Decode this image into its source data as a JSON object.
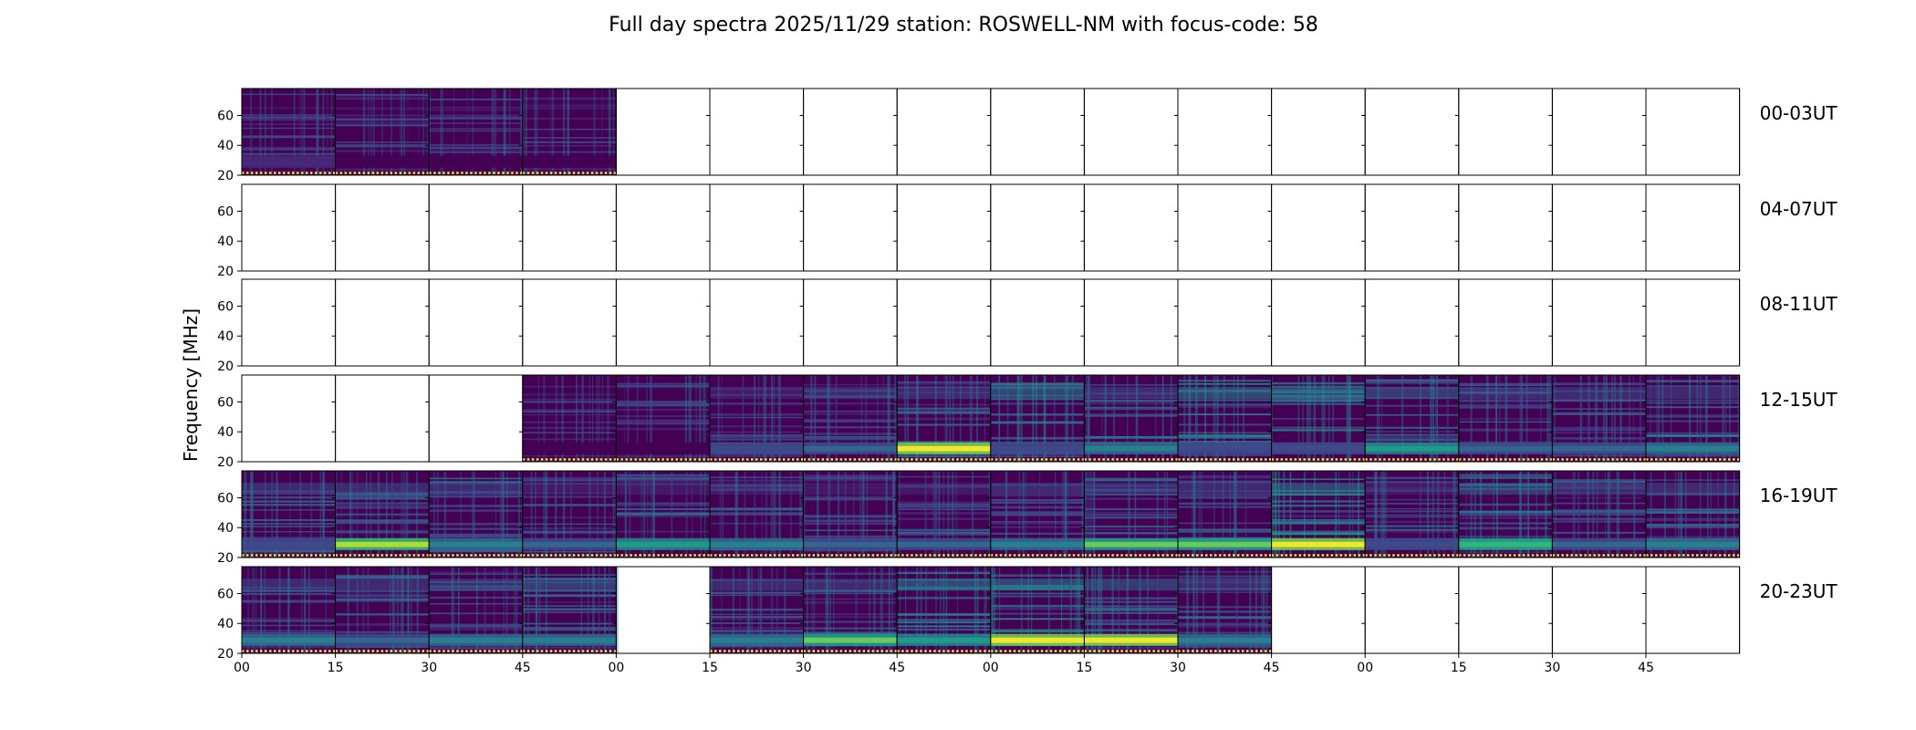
{
  "chart_data": {
    "type": "heatmap",
    "title": "Full day spectra 2025/11/29 station: ROSWELL-NM with focus-code: 58",
    "ylabel": "Frequency [MHz]",
    "xlabel": "",
    "ylim": [
      20,
      78
    ],
    "y_ticks": [
      "20",
      "40",
      "60"
    ],
    "x_ticks": [
      "00",
      "15",
      "30",
      "45",
      "00",
      "15",
      "30",
      "45",
      "00",
      "15",
      "30",
      "45",
      "00",
      "15",
      "30",
      "45"
    ],
    "colormap": [
      "#440154",
      "#482878",
      "#3e4a89",
      "#31688e",
      "#26828e",
      "#1f9e89",
      "#35b779",
      "#6ece58",
      "#b5de2b",
      "#fde725"
    ],
    "rows": [
      {
        "label": "00-03UT",
        "panels": [
          {
            "has_data": true,
            "low_band": 0.15,
            "mid_band": 0.1
          },
          {
            "has_data": true,
            "low_band": 0.1,
            "mid_band": 0.05
          },
          {
            "has_data": true,
            "low_band": 0.1,
            "mid_band": 0.05
          },
          {
            "has_data": true,
            "low_band": 0.1,
            "mid_band": 0.05
          },
          {
            "has_data": false
          },
          {
            "has_data": false
          },
          {
            "has_data": false
          },
          {
            "has_data": false
          },
          {
            "has_data": false
          },
          {
            "has_data": false
          },
          {
            "has_data": false
          },
          {
            "has_data": false
          },
          {
            "has_data": false
          },
          {
            "has_data": false
          },
          {
            "has_data": false
          },
          {
            "has_data": false
          }
        ]
      },
      {
        "label": "04-07UT",
        "panels": [
          {
            "has_data": false
          },
          {
            "has_data": false
          },
          {
            "has_data": false
          },
          {
            "has_data": false
          },
          {
            "has_data": false
          },
          {
            "has_data": false
          },
          {
            "has_data": false
          },
          {
            "has_data": false
          },
          {
            "has_data": false
          },
          {
            "has_data": false
          },
          {
            "has_data": false
          },
          {
            "has_data": false
          },
          {
            "has_data": false
          },
          {
            "has_data": false
          },
          {
            "has_data": false
          },
          {
            "has_data": false
          }
        ]
      },
      {
        "label": "08-11UT",
        "panels": [
          {
            "has_data": false
          },
          {
            "has_data": false
          },
          {
            "has_data": false
          },
          {
            "has_data": false
          },
          {
            "has_data": false
          },
          {
            "has_data": false
          },
          {
            "has_data": false
          },
          {
            "has_data": false
          },
          {
            "has_data": false
          },
          {
            "has_data": false
          },
          {
            "has_data": false
          },
          {
            "has_data": false
          },
          {
            "has_data": false
          },
          {
            "has_data": false
          },
          {
            "has_data": false
          },
          {
            "has_data": false
          }
        ]
      },
      {
        "label": "12-15UT",
        "panels": [
          {
            "has_data": false
          },
          {
            "has_data": false
          },
          {
            "has_data": false
          },
          {
            "has_data": true,
            "low_band": 0.05,
            "mid_band": 0.05
          },
          {
            "has_data": true,
            "low_band": 0.1,
            "mid_band": 0.05
          },
          {
            "has_data": true,
            "low_band": 0.3,
            "mid_band": 0.2
          },
          {
            "has_data": true,
            "low_band": 0.35,
            "mid_band": 0.25
          },
          {
            "has_data": true,
            "low_band": 0.95,
            "mid_band": 0.3
          },
          {
            "has_data": true,
            "low_band": 0.3,
            "mid_band": 0.55
          },
          {
            "has_data": true,
            "low_band": 0.5,
            "mid_band": 0.3
          },
          {
            "has_data": true,
            "low_band": 0.3,
            "mid_band": 0.5
          },
          {
            "has_data": true,
            "low_band": 0.3,
            "mid_band": 0.45
          },
          {
            "has_data": true,
            "low_band": 0.6,
            "mid_band": 0.35
          },
          {
            "has_data": true,
            "low_band": 0.4,
            "mid_band": 0.3
          },
          {
            "has_data": true,
            "low_band": 0.35,
            "mid_band": 0.3
          },
          {
            "has_data": true,
            "low_band": 0.5,
            "mid_band": 0.3
          }
        ]
      },
      {
        "label": "16-19UT",
        "panels": [
          {
            "has_data": true,
            "low_band": 0.3,
            "mid_band": 0.3
          },
          {
            "has_data": true,
            "low_band": 0.85,
            "mid_band": 0.25
          },
          {
            "has_data": true,
            "low_band": 0.45,
            "mid_band": 0.25
          },
          {
            "has_data": true,
            "low_band": 0.35,
            "mid_band": 0.2
          },
          {
            "has_data": true,
            "low_band": 0.55,
            "mid_band": 0.2
          },
          {
            "has_data": true,
            "low_band": 0.45,
            "mid_band": 0.2
          },
          {
            "has_data": true,
            "low_band": 0.4,
            "mid_band": 0.2
          },
          {
            "has_data": true,
            "low_band": 0.4,
            "mid_band": 0.2
          },
          {
            "has_data": true,
            "low_band": 0.5,
            "mid_band": 0.25
          },
          {
            "has_data": true,
            "low_band": 0.75,
            "mid_band": 0.3
          },
          {
            "has_data": true,
            "low_band": 0.8,
            "mid_band": 0.3
          },
          {
            "has_data": true,
            "low_band": 0.95,
            "mid_band": 0.55
          },
          {
            "has_data": true,
            "low_band": 0.3,
            "mid_band": 0.2
          },
          {
            "has_data": true,
            "low_band": 0.7,
            "mid_band": 0.4
          },
          {
            "has_data": true,
            "low_band": 0.35,
            "mid_band": 0.25
          },
          {
            "has_data": true,
            "low_band": 0.45,
            "mid_band": 0.3
          }
        ]
      },
      {
        "label": "20-23UT",
        "panels": [
          {
            "has_data": true,
            "low_band": 0.45,
            "mid_band": 0.25
          },
          {
            "has_data": true,
            "low_band": 0.4,
            "mid_band": 0.25
          },
          {
            "has_data": true,
            "low_band": 0.5,
            "mid_band": 0.3
          },
          {
            "has_data": true,
            "low_band": 0.5,
            "mid_band": 0.35
          },
          {
            "has_data": false
          },
          {
            "has_data": true,
            "low_band": 0.45,
            "mid_band": 0.25
          },
          {
            "has_data": true,
            "low_band": 0.75,
            "mid_band": 0.3
          },
          {
            "has_data": true,
            "low_band": 0.6,
            "mid_band": 0.45
          },
          {
            "has_data": true,
            "low_band": 0.95,
            "mid_band": 0.45
          },
          {
            "has_data": true,
            "low_band": 0.95,
            "mid_band": 0.35
          },
          {
            "has_data": true,
            "low_band": 0.45,
            "mid_band": 0.3
          },
          {
            "has_data": false
          },
          {
            "has_data": false
          },
          {
            "has_data": false
          },
          {
            "has_data": false
          },
          {
            "has_data": false
          }
        ]
      }
    ]
  }
}
